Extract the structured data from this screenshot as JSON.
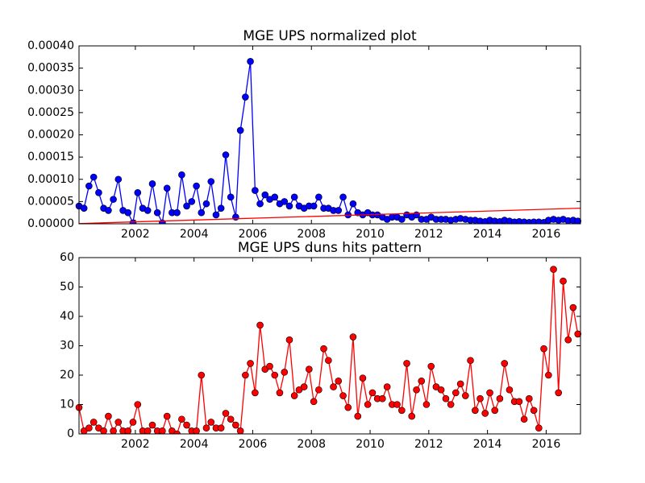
{
  "chart_data": [
    {
      "type": "line",
      "title": "MGE UPS normalized plot",
      "x": [
        2000.08,
        2000.25,
        2000.42,
        2000.58,
        2000.75,
        2000.92,
        2001.08,
        2001.25,
        2001.42,
        2001.58,
        2001.75,
        2001.92,
        2002.08,
        2002.25,
        2002.42,
        2002.58,
        2002.75,
        2002.92,
        2003.08,
        2003.25,
        2003.42,
        2003.58,
        2003.75,
        2003.92,
        2004.08,
        2004.25,
        2004.42,
        2004.58,
        2004.75,
        2004.92,
        2005.08,
        2005.25,
        2005.42,
        2005.58,
        2005.75,
        2005.92,
        2006.08,
        2006.25,
        2006.42,
        2006.58,
        2006.75,
        2006.92,
        2007.08,
        2007.25,
        2007.42,
        2007.58,
        2007.75,
        2007.92,
        2008.08,
        2008.25,
        2008.42,
        2008.58,
        2008.75,
        2008.92,
        2009.08,
        2009.25,
        2009.42,
        2009.58,
        2009.75,
        2009.92,
        2010.08,
        2010.25,
        2010.42,
        2010.58,
        2010.75,
        2010.92,
        2011.08,
        2011.25,
        2011.42,
        2011.58,
        2011.75,
        2011.92,
        2012.08,
        2012.25,
        2012.42,
        2012.58,
        2012.75,
        2012.92,
        2013.08,
        2013.25,
        2013.42,
        2013.58,
        2013.75,
        2013.92,
        2014.08,
        2014.25,
        2014.42,
        2014.58,
        2014.75,
        2014.92,
        2015.08,
        2015.25,
        2015.42,
        2015.58,
        2015.75,
        2015.92,
        2016.08,
        2016.25,
        2016.42,
        2016.58,
        2016.75,
        2016.92,
        2017.08
      ],
      "series": [
        {
          "color": "#0000ff",
          "markers": true,
          "values": [
            4e-05,
            3.5e-05,
            8.5e-05,
            0.000105,
            7e-05,
            3.5e-05,
            3e-05,
            5.5e-05,
            0.0001,
            3e-05,
            2.5e-05,
            2e-06,
            7e-05,
            3.5e-05,
            3e-05,
            9e-05,
            2.5e-05,
            2e-06,
            8e-05,
            2.5e-05,
            2.5e-05,
            0.00011,
            4e-05,
            5e-05,
            8.5e-05,
            2.5e-05,
            4.5e-05,
            9.5e-05,
            2e-05,
            3.5e-05,
            0.000155,
            6e-05,
            1.5e-05,
            0.00021,
            0.000285,
            0.000365,
            7.5e-05,
            4.5e-05,
            6.5e-05,
            5.5e-05,
            6e-05,
            4.5e-05,
            5e-05,
            4e-05,
            6e-05,
            4e-05,
            3.5e-05,
            4e-05,
            4e-05,
            6e-05,
            3.5e-05,
            3.5e-05,
            3e-05,
            3e-05,
            6e-05,
            2e-05,
            4.5e-05,
            2.5e-05,
            2e-05,
            2.5e-05,
            2e-05,
            2e-05,
            1.5e-05,
            1e-05,
            1.5e-05,
            1.5e-05,
            1e-05,
            2e-05,
            1.5e-05,
            2e-05,
            1e-05,
            1e-05,
            1.5e-05,
            1e-05,
            1e-05,
            1e-05,
            8e-06,
            1e-05,
            1.2e-05,
            1e-05,
            8e-06,
            8e-06,
            6e-06,
            5e-06,
            8e-06,
            6e-06,
            5e-06,
            8e-06,
            6e-06,
            4e-06,
            5e-06,
            4e-06,
            3e-06,
            4e-06,
            4e-06,
            3e-06,
            8e-06,
            1e-05,
            8e-06,
            1e-05,
            7e-06,
            8e-06,
            6e-06
          ]
        },
        {
          "color": "#ff0000",
          "markers": false,
          "x": [
            2000.08,
            2017.17
          ],
          "values": [
            5e-07,
            3.5e-05
          ]
        }
      ],
      "xlim": [
        2000.08,
        2017.17
      ],
      "xticks": [
        2002,
        2004,
        2006,
        2008,
        2010,
        2012,
        2014,
        2016
      ],
      "ylim": [
        0,
        0.0004
      ],
      "yticks": [
        {
          "value": 0,
          "label": "0.00000"
        },
        {
          "value": 5e-05,
          "label": "0.00005"
        },
        {
          "value": 0.0001,
          "label": "0.00010"
        },
        {
          "value": 0.00015,
          "label": "0.00015"
        },
        {
          "value": 0.0002,
          "label": "0.00020"
        },
        {
          "value": 0.00025,
          "label": "0.00025"
        },
        {
          "value": 0.0003,
          "label": "0.00030"
        },
        {
          "value": 0.00035,
          "label": "0.00035"
        },
        {
          "value": 0.0004,
          "label": "0.00040"
        }
      ]
    },
    {
      "type": "line",
      "title": "MGE UPS duns hits pattern",
      "x": [
        2000.08,
        2000.25,
        2000.42,
        2000.58,
        2000.75,
        2000.92,
        2001.08,
        2001.25,
        2001.42,
        2001.58,
        2001.75,
        2001.92,
        2002.08,
        2002.25,
        2002.42,
        2002.58,
        2002.75,
        2002.92,
        2003.08,
        2003.25,
        2003.42,
        2003.58,
        2003.75,
        2003.92,
        2004.08,
        2004.25,
        2004.42,
        2004.58,
        2004.75,
        2004.92,
        2005.08,
        2005.25,
        2005.42,
        2005.58,
        2005.75,
        2005.92,
        2006.08,
        2006.25,
        2006.42,
        2006.58,
        2006.75,
        2006.92,
        2007.08,
        2007.25,
        2007.42,
        2007.58,
        2007.75,
        2007.92,
        2008.08,
        2008.25,
        2008.42,
        2008.58,
        2008.75,
        2008.92,
        2009.08,
        2009.25,
        2009.42,
        2009.58,
        2009.75,
        2009.92,
        2010.08,
        2010.25,
        2010.42,
        2010.58,
        2010.75,
        2010.92,
        2011.08,
        2011.25,
        2011.42,
        2011.58,
        2011.75,
        2011.92,
        2012.08,
        2012.25,
        2012.42,
        2012.58,
        2012.75,
        2012.92,
        2013.08,
        2013.25,
        2013.42,
        2013.58,
        2013.75,
        2013.92,
        2014.08,
        2014.25,
        2014.42,
        2014.58,
        2014.75,
        2014.92,
        2015.08,
        2015.25,
        2015.42,
        2015.58,
        2015.75,
        2015.92,
        2016.08,
        2016.25,
        2016.42,
        2016.58,
        2016.75,
        2016.92,
        2017.08
      ],
      "series": [
        {
          "color": "#ff0000",
          "markers": true,
          "values": [
            9,
            1,
            2,
            4,
            2,
            1,
            6,
            1,
            4,
            1,
            1,
            4,
            10,
            1,
            1,
            3,
            1,
            1,
            6,
            1,
            0,
            5,
            3,
            1,
            1,
            20,
            2,
            4,
            2,
            2,
            7,
            5,
            3,
            1,
            20,
            24,
            14,
            37,
            22,
            23,
            20,
            14,
            21,
            32,
            13,
            15,
            16,
            22,
            11,
            15,
            29,
            25,
            16,
            18,
            13,
            9,
            33,
            6,
            19,
            10,
            14,
            12,
            12,
            16,
            10,
            10,
            8,
            24,
            6,
            15,
            18,
            10,
            23,
            16,
            15,
            12,
            10,
            14,
            17,
            13,
            25,
            8,
            12,
            7,
            14,
            8,
            12,
            24,
            15,
            11,
            11,
            5,
            12,
            8,
            2,
            29,
            20,
            56,
            14,
            52,
            32,
            43,
            34
          ]
        }
      ],
      "xlim": [
        2000.08,
        2017.17
      ],
      "xticks": [
        2002,
        2004,
        2006,
        2008,
        2010,
        2012,
        2014,
        2016
      ],
      "ylim": [
        0,
        60
      ],
      "yticks": [
        0,
        10,
        20,
        30,
        40,
        50,
        60
      ]
    }
  ]
}
